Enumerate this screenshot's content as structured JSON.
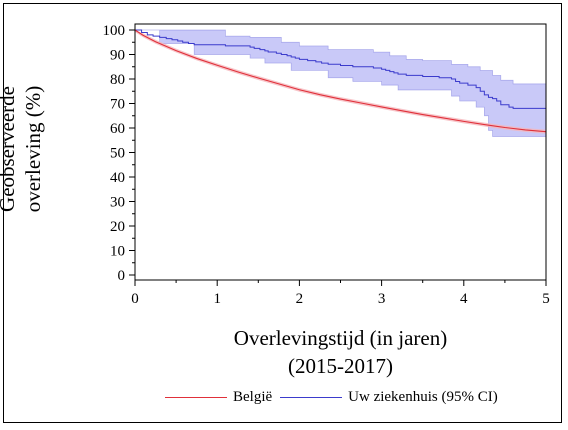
{
  "chart_data": {
    "type": "line",
    "ylabel_lines": [
      "Geobserveerde",
      "overleving (%)"
    ],
    "xlabel_lines": [
      "Overlevingstijd (in jaren)",
      "(2015-2017)"
    ],
    "xlim": [
      0,
      5
    ],
    "ylim": [
      0,
      100
    ],
    "x_ticks": [
      "0",
      "1",
      "2",
      "3",
      "4",
      "5"
    ],
    "y_ticks": [
      "0",
      "10",
      "20",
      "30",
      "40",
      "50",
      "60",
      "70",
      "80",
      "90",
      "100"
    ],
    "series": [
      {
        "name": "België",
        "color": "#e0303a",
        "band_color": "#f5b6bb",
        "x": [
          0,
          0.1,
          0.25,
          0.5,
          0.75,
          1,
          1.25,
          1.5,
          1.75,
          2,
          2.25,
          2.5,
          2.75,
          3,
          3.25,
          3.5,
          3.75,
          4,
          4.25,
          4.5,
          4.75,
          5
        ],
        "y": [
          100,
          97.8,
          95.2,
          91.6,
          88.4,
          85.6,
          82.9,
          80.4,
          78.0,
          75.6,
          73.6,
          71.8,
          70.2,
          68.6,
          67.0,
          65.5,
          64.1,
          62.7,
          61.4,
          60.2,
          59.2,
          58.5
        ],
        "ci_halfwidth": 0.8
      },
      {
        "name": "Uw ziekenhuis (95% CI)",
        "color": "#3b3bcc",
        "band_color": "#b7b7f5",
        "steps": [
          [
            0,
            100
          ],
          [
            0.08,
            99
          ],
          [
            0.15,
            98
          ],
          [
            0.22,
            97.5
          ],
          [
            0.3,
            97
          ],
          [
            0.38,
            96.5
          ],
          [
            0.45,
            96
          ],
          [
            0.52,
            95.5
          ],
          [
            0.58,
            95
          ],
          [
            0.65,
            94.5
          ],
          [
            0.72,
            94
          ],
          [
            1.1,
            93.5
          ],
          [
            1.4,
            93
          ],
          [
            1.45,
            92.5
          ],
          [
            1.52,
            92
          ],
          [
            1.58,
            91.5
          ],
          [
            1.62,
            91
          ],
          [
            1.72,
            90.5
          ],
          [
            1.78,
            90
          ],
          [
            1.85,
            89.5
          ],
          [
            1.9,
            89
          ],
          [
            1.95,
            88.5
          ],
          [
            2.0,
            88
          ],
          [
            2.1,
            87.5
          ],
          [
            2.2,
            87
          ],
          [
            2.27,
            86.5
          ],
          [
            2.35,
            86
          ],
          [
            2.5,
            85.5
          ],
          [
            2.65,
            85
          ],
          [
            2.9,
            84.5
          ],
          [
            3.0,
            84
          ],
          [
            3.05,
            83.5
          ],
          [
            3.1,
            83
          ],
          [
            3.15,
            82.5
          ],
          [
            3.2,
            82
          ],
          [
            3.3,
            81.5
          ],
          [
            3.5,
            81
          ],
          [
            3.7,
            80.5
          ],
          [
            3.85,
            80
          ],
          [
            3.9,
            79
          ],
          [
            3.95,
            78.3
          ],
          [
            4.05,
            77.5
          ],
          [
            4.15,
            76.5
          ],
          [
            4.2,
            75
          ],
          [
            4.25,
            73.5
          ],
          [
            4.3,
            72.5
          ],
          [
            4.35,
            72
          ],
          [
            4.4,
            71
          ],
          [
            4.45,
            69.5
          ],
          [
            4.55,
            68.5
          ],
          [
            4.6,
            68
          ],
          [
            5.05,
            68
          ]
        ],
        "band_lower": [
          [
            0,
            100
          ],
          [
            0.3,
            94.5
          ],
          [
            0.72,
            90
          ],
          [
            1.4,
            88.5
          ],
          [
            1.58,
            86.5
          ],
          [
            1.9,
            83.5
          ],
          [
            2.35,
            80.5
          ],
          [
            2.65,
            79
          ],
          [
            3.0,
            77.5
          ],
          [
            3.2,
            75.5
          ],
          [
            3.85,
            73
          ],
          [
            3.95,
            71
          ],
          [
            4.15,
            68.5
          ],
          [
            4.25,
            65
          ],
          [
            4.3,
            59
          ],
          [
            4.35,
            56.5
          ],
          [
            4.6,
            56.5
          ],
          [
            5.05,
            56.5
          ]
        ],
        "band_upper": [
          [
            0,
            100
          ],
          [
            1.1,
            97.5
          ],
          [
            1.4,
            97
          ],
          [
            1.78,
            95
          ],
          [
            2.0,
            93.5
          ],
          [
            2.35,
            92
          ],
          [
            2.9,
            91
          ],
          [
            3.1,
            89.5
          ],
          [
            3.3,
            88
          ],
          [
            3.5,
            87.5
          ],
          [
            3.85,
            86
          ],
          [
            4.05,
            85
          ],
          [
            4.2,
            83.5
          ],
          [
            4.35,
            81.5
          ],
          [
            4.45,
            79.5
          ],
          [
            4.6,
            78
          ],
          [
            5.05,
            78
          ]
        ]
      }
    ],
    "legend": {
      "placement": "bottom",
      "items": [
        {
          "label": "België",
          "color": "#e0303a"
        },
        {
          "label": "Uw ziekenhuis (95% CI)",
          "color": "#3b3bcc"
        }
      ]
    },
    "grid": false
  }
}
